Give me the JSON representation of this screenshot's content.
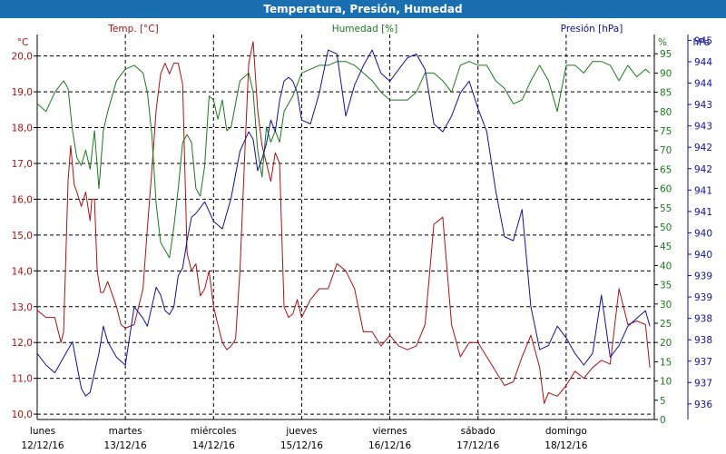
{
  "window": {
    "title": "Temperatura, Presión, Humedad"
  },
  "chart_data": {
    "type": "line",
    "title": "Temperatura, Presión, Humedad",
    "colors": {
      "temp": "#b01010",
      "hum": "#1a7a1a",
      "pres": "#1010a0",
      "grid": "#000000"
    },
    "axes": {
      "temp": {
        "label": "Temp. [°C]",
        "unit_label": "°C",
        "range": [
          9.85,
          20.6
        ],
        "ticks": [
          "10,0",
          "11,0",
          "12,0",
          "13,0",
          "14,0",
          "15,0",
          "16,0",
          "17,0",
          "18,0",
          "19,0",
          "20,0"
        ]
      },
      "hum": {
        "label": "Humedad [%]",
        "unit_label": "%",
        "range": [
          0,
          100
        ],
        "ticks": [
          "0",
          "5",
          "10",
          "15",
          "20",
          "25",
          "30",
          "35",
          "40",
          "45",
          "50",
          "55",
          "60",
          "65",
          "70",
          "75",
          "80",
          "85",
          "90",
          "95"
        ]
      },
      "pres": {
        "label": "Presión [hPa]",
        "unit_label": "hPa",
        "range": [
          935.6,
          945.5
        ],
        "ticks": [
          "936",
          "937",
          "937",
          "938",
          "938",
          "939",
          "939",
          "940",
          "940",
          "941",
          "941",
          "942",
          "942",
          "943",
          "943",
          "944",
          "944",
          "945"
        ]
      }
    },
    "x_range": [
      0,
      7
    ],
    "days": [
      {
        "day": "lunes",
        "date": "12/12/16"
      },
      {
        "day": "martes",
        "date": "13/12/16"
      },
      {
        "day": "miércoles",
        "date": "14/12/16"
      },
      {
        "day": "jueves",
        "date": "15/12/16"
      },
      {
        "day": "viernes",
        "date": "16/12/16"
      },
      {
        "day": "sábado",
        "date": "17/12/16"
      },
      {
        "day": "domingo",
        "date": "18/12/16"
      }
    ],
    "series": [
      {
        "name": "Temp. [°C]",
        "axis": "temp",
        "key": "temp",
        "x": [
          0,
          0.1,
          0.2,
          0.27,
          0.3,
          0.35,
          0.38,
          0.42,
          0.45,
          0.5,
          0.55,
          0.6,
          0.62,
          0.65,
          0.68,
          0.72,
          0.75,
          0.8,
          0.9,
          0.95,
          1.0,
          1.1,
          1.2,
          1.25,
          1.3,
          1.35,
          1.4,
          1.45,
          1.5,
          1.55,
          1.6,
          1.65,
          1.7,
          1.75,
          1.8,
          1.85,
          1.9,
          1.95,
          2.0,
          2.05,
          2.1,
          2.15,
          2.2,
          2.25,
          2.3,
          2.35,
          2.4,
          2.45,
          2.5,
          2.55,
          2.6,
          2.65,
          2.7,
          2.75,
          2.8,
          2.85,
          2.9,
          2.95,
          3.0,
          3.1,
          3.2,
          3.3,
          3.4,
          3.5,
          3.6,
          3.7,
          3.8,
          3.9,
          4.0,
          4.1,
          4.2,
          4.3,
          4.4,
          4.5,
          4.6,
          4.7,
          4.8,
          4.9,
          5.0,
          5.05,
          5.1,
          5.2,
          5.3,
          5.4,
          5.5,
          5.6,
          5.7,
          5.75,
          5.8,
          5.9,
          6.0,
          6.1,
          6.2,
          6.3,
          6.4,
          6.5,
          6.6,
          6.7,
          6.8,
          6.9,
          6.95
        ],
        "values": [
          12.9,
          12.7,
          12.7,
          12.0,
          12.3,
          16.5,
          17.5,
          16.4,
          16.2,
          15.8,
          16.2,
          15.4,
          16.0,
          16.0,
          14.0,
          13.4,
          13.4,
          13.7,
          13.0,
          12.5,
          12.4,
          12.5,
          13.5,
          15.2,
          16.8,
          18.5,
          19.5,
          19.8,
          19.5,
          19.8,
          19.8,
          19.2,
          14.5,
          14.0,
          14.2,
          13.3,
          13.5,
          14.0,
          13.0,
          12.5,
          12.0,
          11.8,
          11.9,
          12.1,
          14.0,
          17.0,
          19.8,
          20.4,
          18.5,
          17.5,
          17.0,
          16.5,
          17.3,
          17.0,
          13.0,
          12.7,
          12.8,
          13.2,
          12.7,
          13.2,
          13.5,
          13.5,
          14.2,
          14.0,
          13.5,
          12.3,
          12.3,
          11.9,
          12.2,
          11.9,
          11.8,
          11.9,
          12.5,
          15.3,
          15.5,
          12.5,
          11.6,
          12.0,
          12.0,
          11.8,
          11.6,
          11.2,
          10.8,
          10.9,
          11.6,
          12.2,
          11.3,
          10.3,
          10.6,
          10.5,
          10.8,
          11.2,
          11.0,
          11.3,
          11.5,
          11.4,
          13.5,
          12.5,
          12.6,
          12.5,
          11.3
        ]
      },
      {
        "name": "Humedad [%]",
        "axis": "hum",
        "key": "hum",
        "x": [
          0,
          0.1,
          0.2,
          0.3,
          0.35,
          0.4,
          0.45,
          0.5,
          0.55,
          0.6,
          0.65,
          0.7,
          0.75,
          0.8,
          0.9,
          1.0,
          1.1,
          1.2,
          1.25,
          1.3,
          1.35,
          1.4,
          1.5,
          1.55,
          1.6,
          1.65,
          1.7,
          1.75,
          1.8,
          1.85,
          1.9,
          1.95,
          2.0,
          2.05,
          2.1,
          2.15,
          2.2,
          2.3,
          2.4,
          2.45,
          2.5,
          2.55,
          2.6,
          2.65,
          2.7,
          2.75,
          2.8,
          2.9,
          3.0,
          3.1,
          3.2,
          3.3,
          3.4,
          3.5,
          3.6,
          3.7,
          3.8,
          3.9,
          4.0,
          4.1,
          4.2,
          4.3,
          4.4,
          4.5,
          4.6,
          4.7,
          4.8,
          4.9,
          5.0,
          5.1,
          5.2,
          5.3,
          5.4,
          5.5,
          5.6,
          5.7,
          5.8,
          5.9,
          6.0,
          6.1,
          6.2,
          6.3,
          6.4,
          6.5,
          6.6,
          6.7,
          6.8,
          6.9,
          6.95
        ],
        "values": [
          82,
          80,
          85,
          88,
          86,
          75,
          68,
          66,
          70,
          65,
          75,
          60,
          75,
          80,
          88,
          91,
          92,
          90,
          85,
          74,
          56,
          46,
          42,
          50,
          60,
          72,
          74,
          72,
          60,
          58,
          66,
          84,
          83,
          78,
          83,
          75,
          76,
          88,
          90,
          85,
          70,
          63,
          76,
          72,
          75,
          72,
          80,
          84,
          90,
          91,
          92,
          92,
          93,
          93,
          92,
          90,
          88,
          85,
          83,
          83,
          83,
          85,
          90,
          90,
          88,
          85,
          92,
          93,
          92,
          92,
          88,
          86,
          82,
          83,
          88,
          92,
          88,
          80,
          92,
          92,
          90,
          93,
          93,
          92,
          88,
          92,
          89,
          91,
          90
        ]
      },
      {
        "name": "Presión [hPa]",
        "axis": "pres",
        "key": "pres",
        "x": [
          0,
          0.1,
          0.2,
          0.3,
          0.35,
          0.4,
          0.45,
          0.5,
          0.55,
          0.6,
          0.65,
          0.7,
          0.75,
          0.8,
          0.9,
          1.0,
          1.1,
          1.2,
          1.25,
          1.3,
          1.35,
          1.4,
          1.45,
          1.5,
          1.55,
          1.6,
          1.65,
          1.7,
          1.75,
          1.8,
          1.9,
          2.0,
          2.1,
          2.2,
          2.3,
          2.4,
          2.45,
          2.5,
          2.55,
          2.6,
          2.65,
          2.7,
          2.75,
          2.8,
          2.85,
          2.9,
          2.95,
          3.0,
          3.1,
          3.2,
          3.3,
          3.4,
          3.5,
          3.6,
          3.7,
          3.8,
          3.9,
          4.0,
          4.1,
          4.2,
          4.3,
          4.4,
          4.5,
          4.6,
          4.7,
          4.8,
          4.9,
          5.0,
          5.1,
          5.2,
          5.3,
          5.4,
          5.5,
          5.6,
          5.7,
          5.8,
          5.9,
          6.0,
          6.1,
          6.2,
          6.3,
          6.4,
          6.5,
          6.6,
          6.7,
          6.8,
          6.9,
          6.95
        ],
        "values": [
          937.3,
          937.0,
          936.8,
          937.2,
          937.4,
          937.6,
          937.0,
          936.4,
          936.2,
          936.3,
          936.8,
          937.3,
          938.0,
          937.6,
          937.2,
          937.0,
          938.5,
          938.2,
          938.0,
          938.5,
          939.0,
          938.8,
          938.4,
          938.3,
          938.5,
          939.3,
          939.5,
          940.2,
          940.8,
          940.9,
          941.2,
          940.7,
          940.5,
          941.3,
          942.5,
          943.0,
          942.8,
          942.0,
          942.3,
          942.7,
          943.3,
          943.0,
          943.8,
          944.3,
          944.4,
          944.3,
          944.0,
          943.3,
          943.2,
          944.0,
          945.1,
          945.0,
          943.4,
          944.2,
          944.7,
          945.1,
          944.5,
          944.3,
          944.6,
          944.9,
          945.0,
          944.6,
          943.2,
          943.0,
          943.4,
          944.0,
          944.3,
          943.6,
          943.0,
          941.5,
          940.3,
          940.2,
          941.0,
          938.5,
          937.4,
          937.5,
          938.0,
          937.7,
          937.3,
          937.0,
          937.3,
          938.8,
          937.2,
          937.5,
          938.0,
          938.2,
          938.4,
          938.0
        ]
      }
    ]
  }
}
